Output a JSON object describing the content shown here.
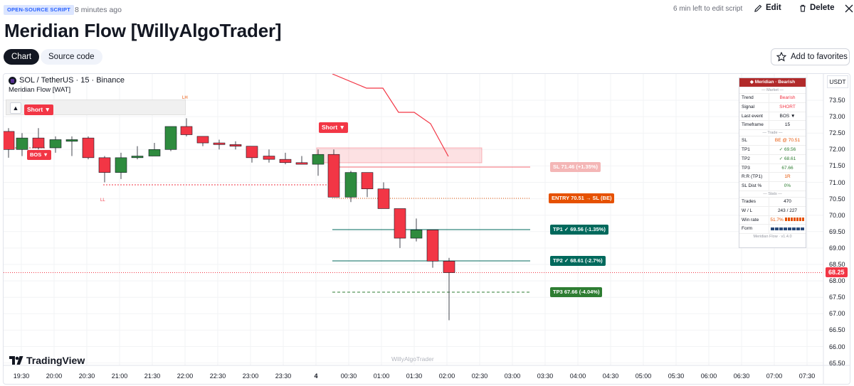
{
  "header": {
    "badge": "OPEN-SOURCE SCRIPT",
    "posted_ago": "8 minutes ago",
    "edit_time_left": "6 min left to edit script",
    "edit_label": "Edit",
    "delete_label": "Delete"
  },
  "title": "Meridian Flow [WillyAlgoTrader]",
  "tabs": [
    {
      "label": "Chart",
      "active": true
    },
    {
      "label": "Source code",
      "active": false
    }
  ],
  "favorites_label": "Add to favorites",
  "chart": {
    "symbol": "SOL / TetherUS · 15 · Binance",
    "indicator": "Meridian Flow [WAT]",
    "currency": "USDT",
    "watermark": "WillyAlgoTrader",
    "brand": "TradingView",
    "last_price": "68.25",
    "colors": {
      "bull": "#2e8b3e",
      "bear": "#f23645",
      "accent": "#2962ff"
    },
    "x_ticks": [
      "19:30",
      "20:00",
      "20:30",
      "21:00",
      "21:30",
      "22:00",
      "22:30",
      "23:00",
      "23:30",
      "4",
      "00:30",
      "01:00",
      "01:30",
      "02:00",
      "02:30",
      "03:00",
      "03:30",
      "04:00",
      "04:30",
      "05:00",
      "05:30",
      "06:00",
      "06:30",
      "07:00",
      "07:30"
    ],
    "y_ticks": [
      "73.50",
      "73.00",
      "72.50",
      "72.00",
      "71.50",
      "71.00",
      "70.50",
      "70.00",
      "69.50",
      "69.00",
      "68.50",
      "68.00",
      "67.50",
      "67.00",
      "66.50",
      "66.00",
      "65.50"
    ],
    "y_tick_values": [
      73.5,
      73,
      72.5,
      72,
      71.5,
      71,
      70.5,
      70,
      69.5,
      69,
      68.5,
      68,
      67.5,
      67,
      66.5,
      66,
      65.5
    ],
    "signals": {
      "short_1": "Short ▼",
      "short_2": "Short ▼",
      "bos_1": "BOS ▼",
      "lh": "LH",
      "ll": "LL"
    },
    "levels": [
      {
        "label": "SL 71.46 (+1.35%)",
        "price": 71.46,
        "color": "#f4b6b6",
        "text_color": "#ffffff"
      },
      {
        "label": "ENTRY 70.51 → SL (BE)",
        "price": 70.51,
        "color": "#e65100",
        "text_color": "#ffffff"
      },
      {
        "label": "TP1 ✓ 69.56 (-1.35%)",
        "price": 69.56,
        "color": "#00695c",
        "text_color": "#ffffff"
      },
      {
        "label": "TP2 ✓ 68.61 (-2.7%)",
        "price": 68.61,
        "color": "#00695c",
        "text_color": "#ffffff"
      },
      {
        "label": "TP3 67.66 (-4.04%)",
        "price": 67.66,
        "color": "#2e7d32",
        "text_color": "#ffffff"
      }
    ]
  },
  "panel": {
    "header": "◆ Meridian · Bearish",
    "market_label": "— Market —",
    "market_rows": [
      {
        "k": "Trend",
        "v": "Bearish",
        "c": "#f23645"
      },
      {
        "k": "Signal",
        "v": "SHORT",
        "c": "#f23645"
      },
      {
        "k": "Last event",
        "v": "BOS ▼",
        "c": "#131722"
      },
      {
        "k": "Timeframe",
        "v": "15",
        "c": "#131722"
      }
    ],
    "trade_label": "— Trade —",
    "trade_rows": [
      {
        "k": "SL",
        "v": "BE @ 70.51",
        "c": "#e65100"
      },
      {
        "k": "TP1",
        "v": "✓ 69.56",
        "c": "#2e7d32"
      },
      {
        "k": "TP2",
        "v": "✓ 68.61",
        "c": "#2e7d32"
      },
      {
        "k": "TP3",
        "v": "67.66",
        "c": "#2e7d32"
      },
      {
        "k": "R:R (TP1)",
        "v": "1R",
        "c": "#e65100"
      },
      {
        "k": "SL Dist %",
        "v": "0%",
        "c": "#2e7d32"
      }
    ],
    "stats_label": "— Stats —",
    "stats_rows": [
      {
        "k": "Trades",
        "v": "470",
        "c": "#131722"
      },
      {
        "k": "W / L",
        "v": "243 / 227",
        "c": "#131722"
      },
      {
        "k": "Win rate",
        "v": "51.7%",
        "c": "#e65100"
      },
      {
        "k": "Form",
        "v": "",
        "c": "#131722"
      }
    ],
    "footer": "Meridian Flow · v1.4.0"
  }
}
